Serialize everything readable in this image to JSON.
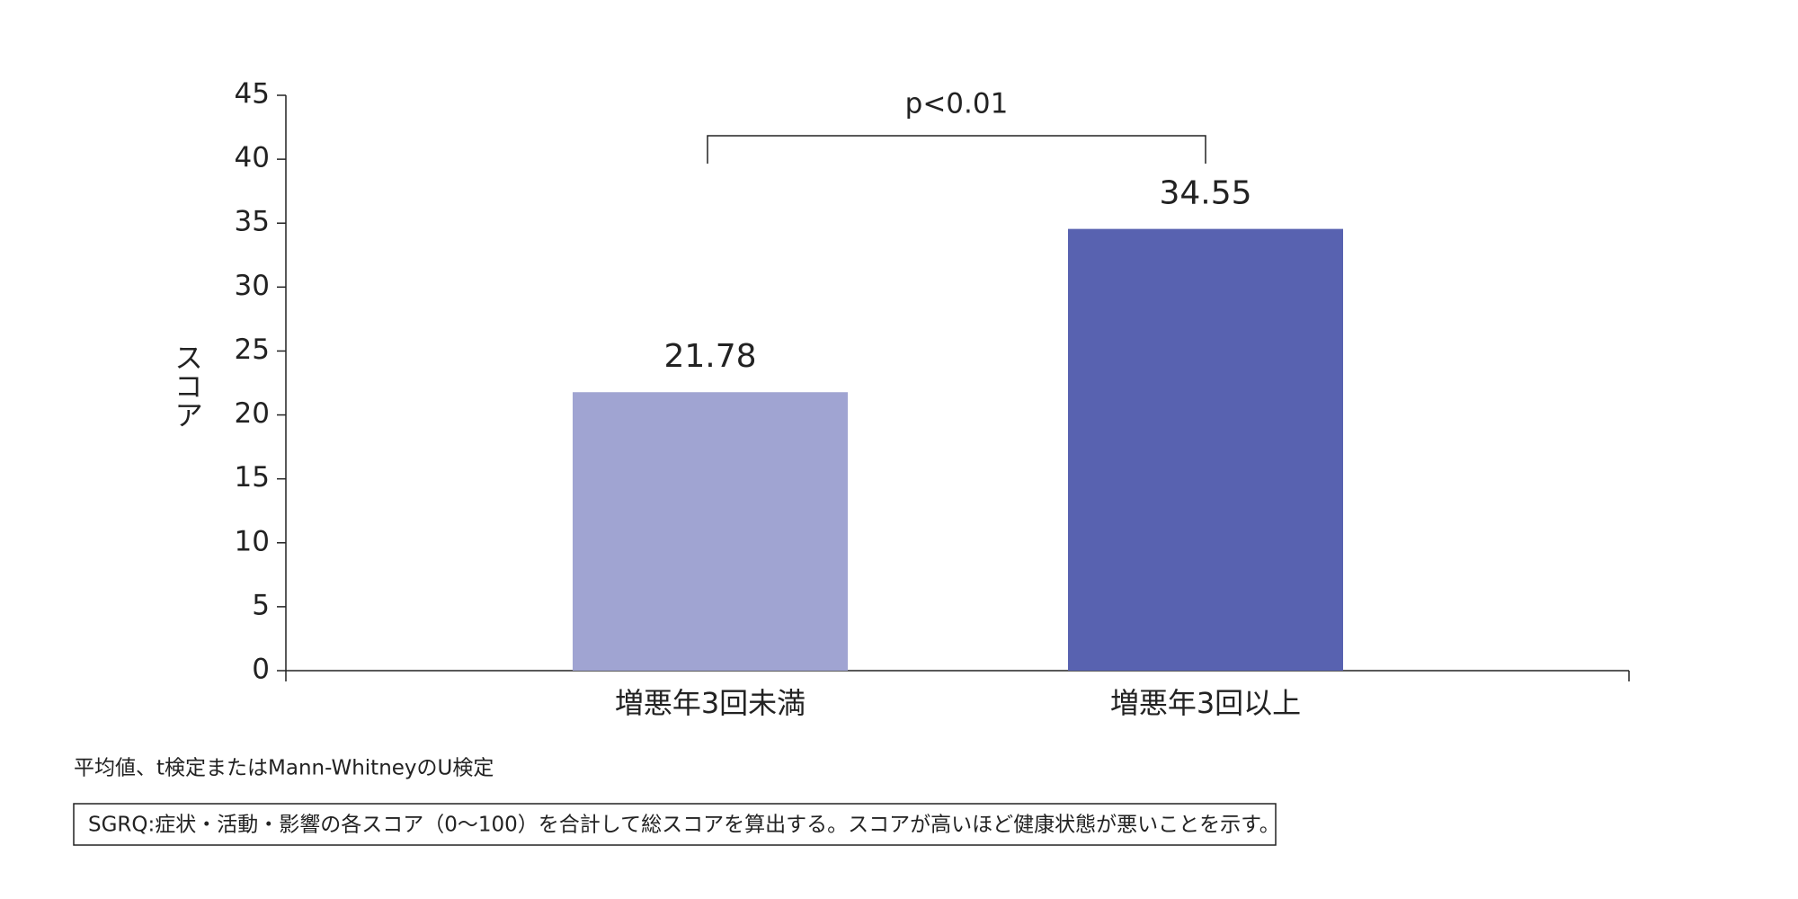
{
  "chart_data": {
    "type": "bar",
    "y_label": "スコア",
    "categories": [
      "増悪年3回未満",
      "増悪年3回以上"
    ],
    "values": [
      21.78,
      34.55
    ],
    "colors": [
      "#a0a4d2",
      "#5862b0"
    ],
    "ylim": [
      0,
      45
    ],
    "yticks": [
      0,
      5,
      10,
      15,
      20,
      25,
      30,
      35,
      40,
      45
    ],
    "annotation": "p<0.01"
  },
  "notes": {
    "method": "平均値、t検定またはMann-WhitneyのU検定",
    "box": "SGRQ:症状・活動・影響の各スコア（0〜100）を合計して総スコアを算出する。スコアが高いほど健康状態が悪いことを示す。"
  }
}
